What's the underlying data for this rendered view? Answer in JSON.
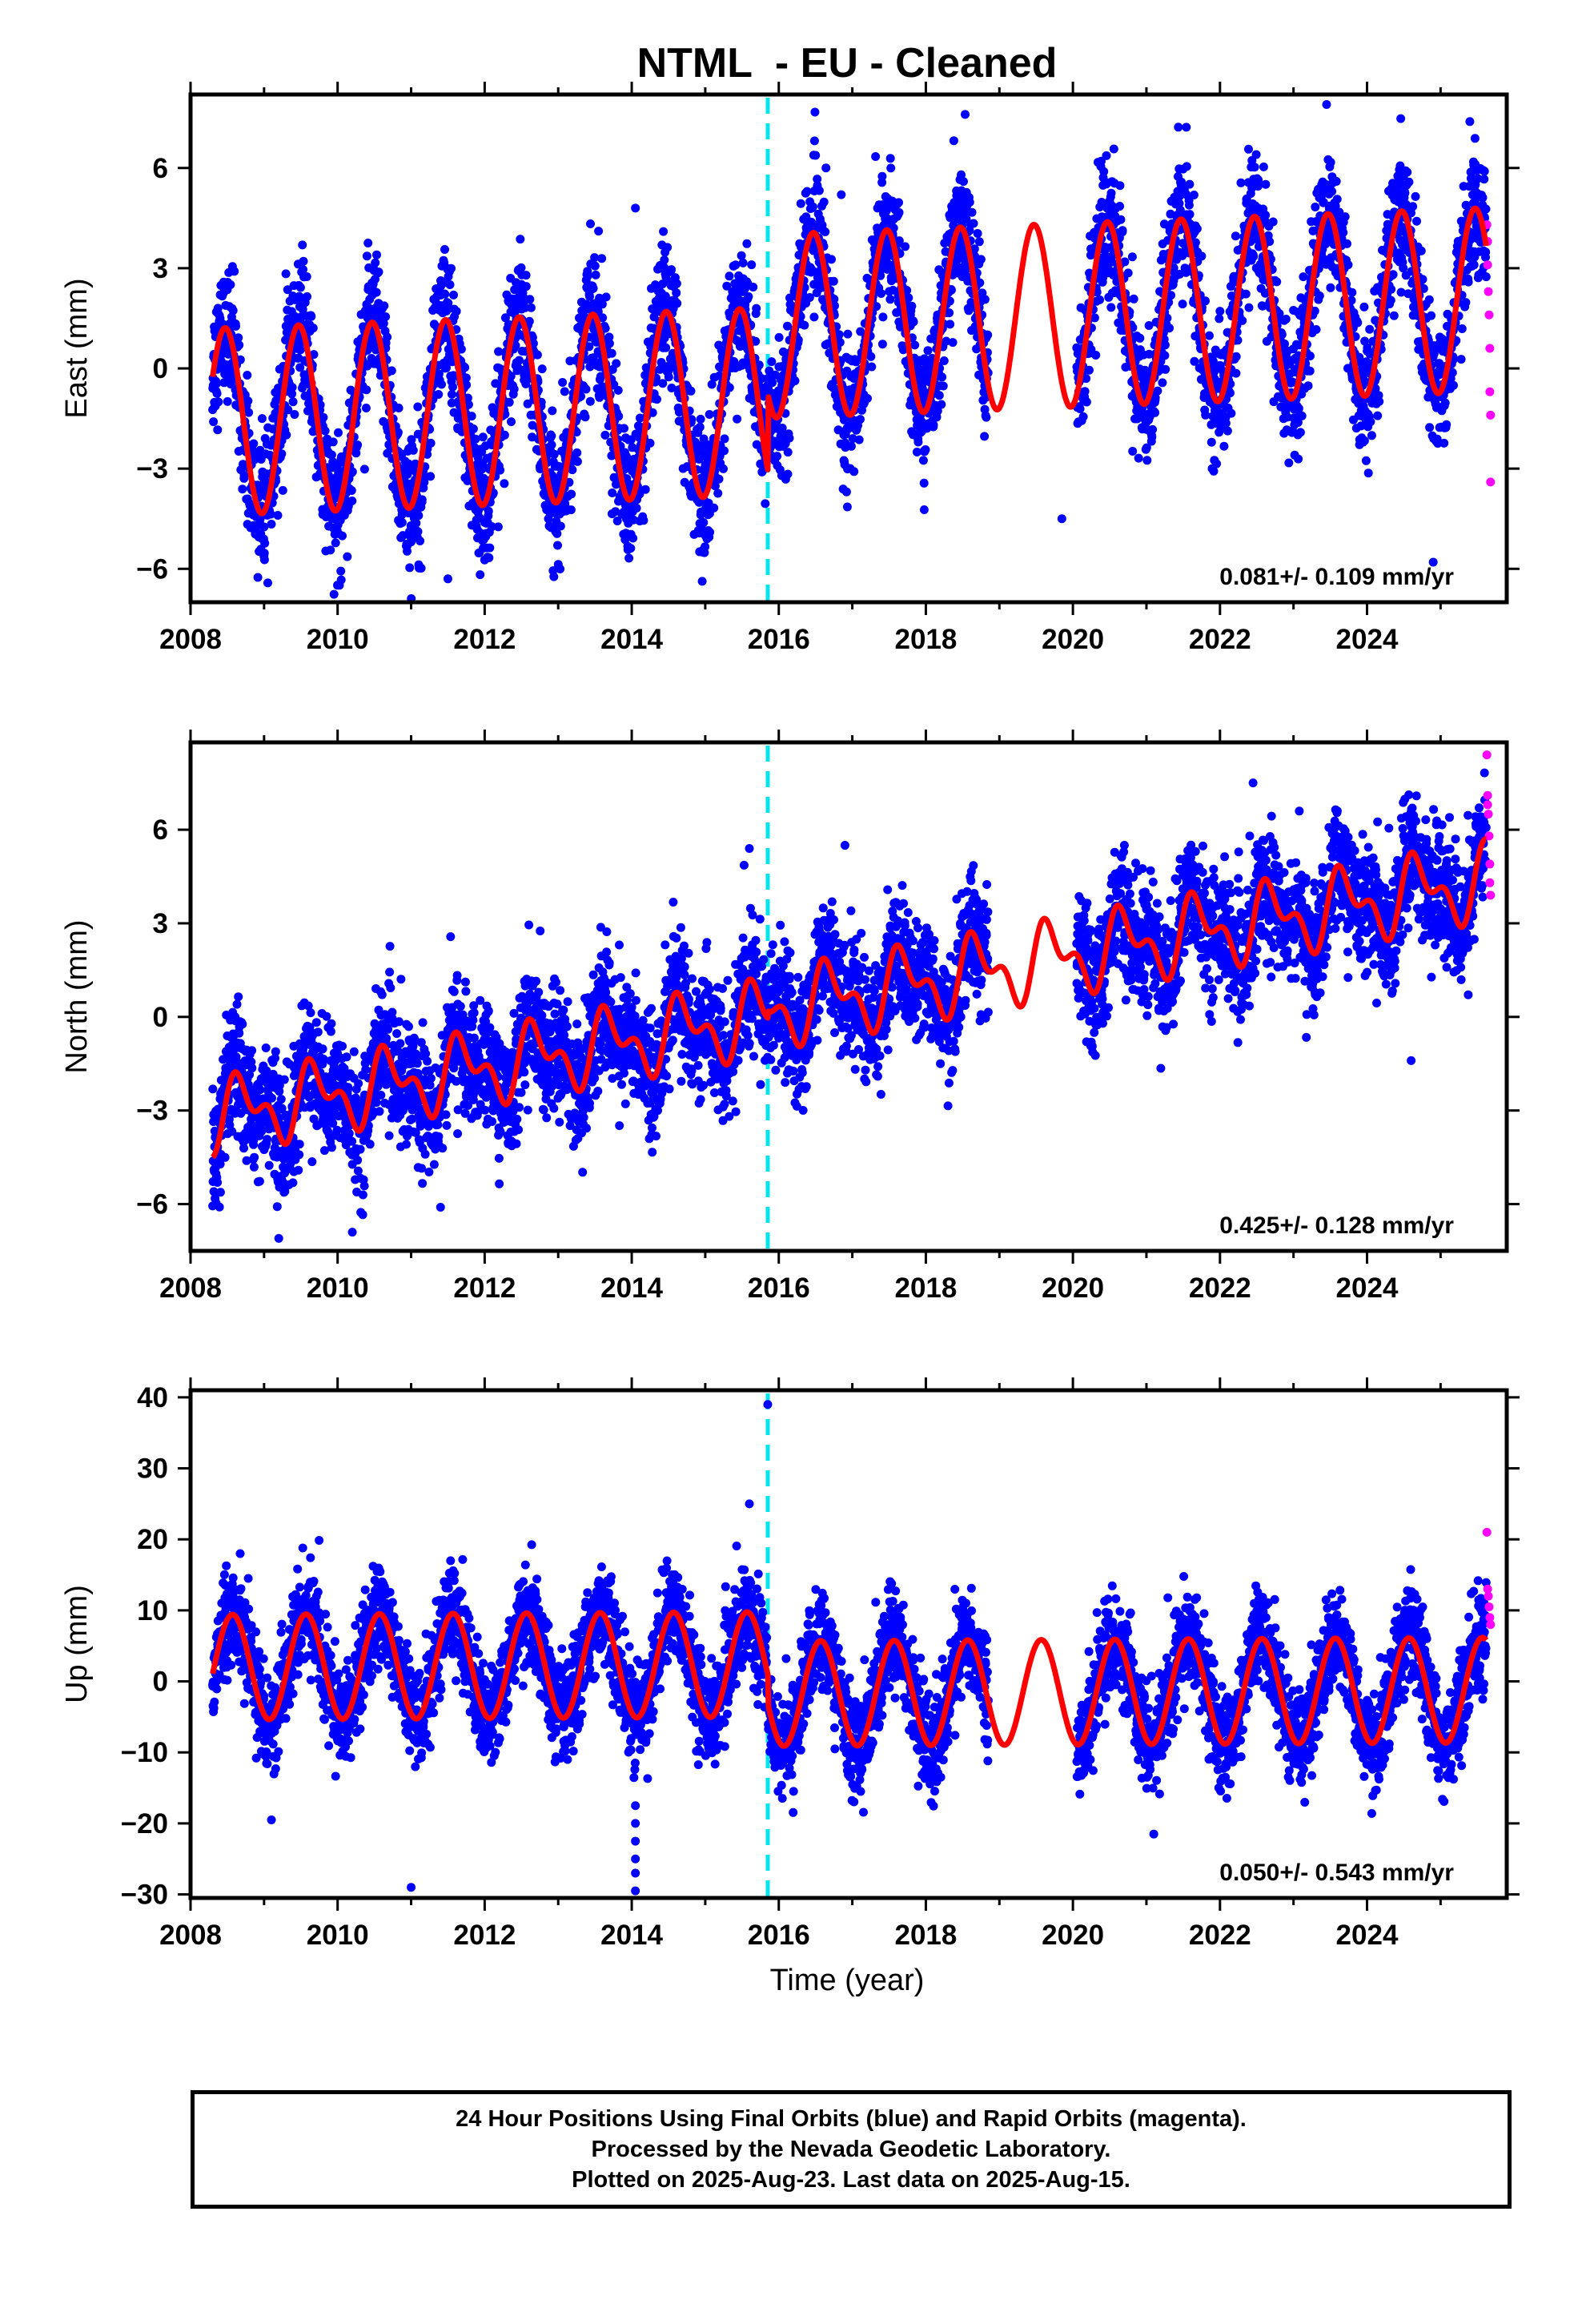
{
  "figure": {
    "title": "NTML  - EU - Cleaned",
    "xlabel": "Time (year)",
    "colors": {
      "final_orbits": "#0000ff",
      "rapid_orbits": "#ff00ff",
      "model_fit": "#ff0000",
      "offset_line": "#00e5ee",
      "frame": "#000000"
    }
  },
  "chart_data": [
    {
      "type": "scatter",
      "panel": "east",
      "ylabel": "East (mm)",
      "xlim": [
        2008,
        2025.9
      ],
      "ylim": [
        -7,
        8.2
      ],
      "xticks": [
        2008,
        2010,
        2012,
        2014,
        2016,
        2018,
        2020,
        2022,
        2024
      ],
      "yticks": [
        -6,
        -3,
        0,
        3,
        6
      ],
      "rate_text": "0.081+/- 0.109 mm/yr",
      "offset_epoch": 2015.85,
      "model": {
        "trend": 0.081,
        "intercept": -0.7,
        "start": 2008.3,
        "end": 2025.62,
        "segments": [
          {
            "until": 2015.85,
            "mean": -0.9,
            "amplitude": 2.8,
            "phase": 0.22
          },
          {
            "until": 2025.62,
            "mean": 1.35,
            "amplitude": 2.75,
            "phase": 0.22
          }
        ]
      },
      "scatter_spread": 0.95,
      "gaps": [
        [
          2018.85,
          2020.05
        ]
      ],
      "rapid_points": [
        [
          2025.63,
          4.3
        ],
        [
          2025.64,
          3.8
        ],
        [
          2025.64,
          3.1
        ],
        [
          2025.65,
          2.3
        ],
        [
          2025.66,
          1.6
        ],
        [
          2025.67,
          0.6
        ],
        [
          2025.67,
          -0.7
        ],
        [
          2025.68,
          -1.4
        ],
        [
          2025.68,
          -3.4
        ]
      ],
      "outliers": [
        [
          2016.85,
          5.2
        ],
        [
          2018.45,
          4.2
        ],
        [
          2019.85,
          -4.5
        ],
        [
          2024.9,
          -5.8
        ],
        [
          2014.05,
          4.8
        ],
        [
          2023.45,
          7.9
        ],
        [
          2011.5,
          -6.3
        ]
      ]
    },
    {
      "type": "scatter",
      "panel": "north",
      "ylabel": "North (mm)",
      "xlim": [
        2008,
        2025.9
      ],
      "ylim": [
        -7.5,
        8.8
      ],
      "xticks": [
        2008,
        2010,
        2012,
        2014,
        2016,
        2018,
        2020,
        2022,
        2024
      ],
      "yticks": [
        -6,
        -3,
        0,
        3,
        6
      ],
      "rate_text": "0.425+/- 0.128 mm/yr",
      "offset_epoch": 2015.85,
      "model": {
        "trend": 0.425,
        "intercept": -3.2,
        "start": 2008.3,
        "end": 2025.62,
        "segments": [
          {
            "until": 2015.85,
            "mean": 0.0,
            "amplitude": 0.9,
            "phase": 0.45,
            "second_harmonic": 0.6
          },
          {
            "until": 2025.62,
            "mean": 0.2,
            "amplitude": 0.95,
            "phase": 0.45,
            "second_harmonic": 0.6
          }
        ]
      },
      "scatter_spread": 0.95,
      "gaps": [
        [
          2018.85,
          2020.05
        ]
      ],
      "rapid_points": [
        [
          2025.63,
          8.4
        ],
        [
          2025.64,
          7.1
        ],
        [
          2025.64,
          6.8
        ],
        [
          2025.65,
          6.5
        ],
        [
          2025.66,
          5.8
        ],
        [
          2025.67,
          4.9
        ],
        [
          2025.67,
          4.3
        ],
        [
          2025.68,
          3.9
        ]
      ],
      "outliers": [
        [
          2016.9,
          5.5
        ],
        [
          2015.6,
          5.4
        ],
        [
          2022.45,
          7.5
        ],
        [
          2024.6,
          -1.4
        ],
        [
          2009.2,
          -7.1
        ],
        [
          2010.2,
          -6.9
        ],
        [
          2011.4,
          -6.1
        ]
      ]
    },
    {
      "type": "scatter",
      "panel": "up",
      "ylabel": "Up (mm)",
      "xlim": [
        2008,
        2025.9
      ],
      "ylim": [
        -30.5,
        41
      ],
      "xticks": [
        2008,
        2010,
        2012,
        2014,
        2016,
        2018,
        2020,
        2022,
        2024
      ],
      "yticks": [
        -30,
        -20,
        -10,
        0,
        10,
        20,
        30,
        40
      ],
      "rate_text": "0.050+/- 0.543 mm/yr",
      "offset_epoch": 2015.85,
      "model": {
        "trend": 0.05,
        "intercept": -0.5,
        "start": 2008.3,
        "end": 2025.62,
        "segments": [
          {
            "until": 2015.85,
            "mean": 2.5,
            "amplitude": 7.4,
            "phase": 0.32
          },
          {
            "until": 2025.62,
            "mean": -1.6,
            "amplitude": 7.4,
            "phase": 0.32
          }
        ]
      },
      "scatter_spread": 3.4,
      "gaps": [
        [
          2018.85,
          2020.05
        ]
      ],
      "rapid_points": [
        [
          2025.63,
          21.0
        ],
        [
          2025.64,
          13.0
        ],
        [
          2025.65,
          12.0
        ],
        [
          2025.66,
          10.5
        ],
        [
          2025.67,
          9.0
        ],
        [
          2025.68,
          8.0
        ]
      ],
      "outliers": [
        [
          2015.85,
          39.0
        ],
        [
          2015.6,
          25.0
        ],
        [
          2011.0,
          -29.0
        ],
        [
          2014.05,
          -17.5
        ],
        [
          2014.05,
          -20.0
        ],
        [
          2014.05,
          -22.5
        ],
        [
          2014.05,
          -25.0
        ],
        [
          2014.05,
          -27.0
        ],
        [
          2014.05,
          -29.5
        ],
        [
          2009.1,
          -19.5
        ],
        [
          2021.1,
          -21.5
        ]
      ]
    }
  ],
  "footer": {
    "lines": [
      "24 Hour Positions Using Final Orbits (blue) and Rapid Orbits (magenta).",
      "Processed by the Nevada Geodetic Laboratory.",
      "Plotted on 2025-Aug-23. Last data on 2025-Aug-15."
    ]
  }
}
